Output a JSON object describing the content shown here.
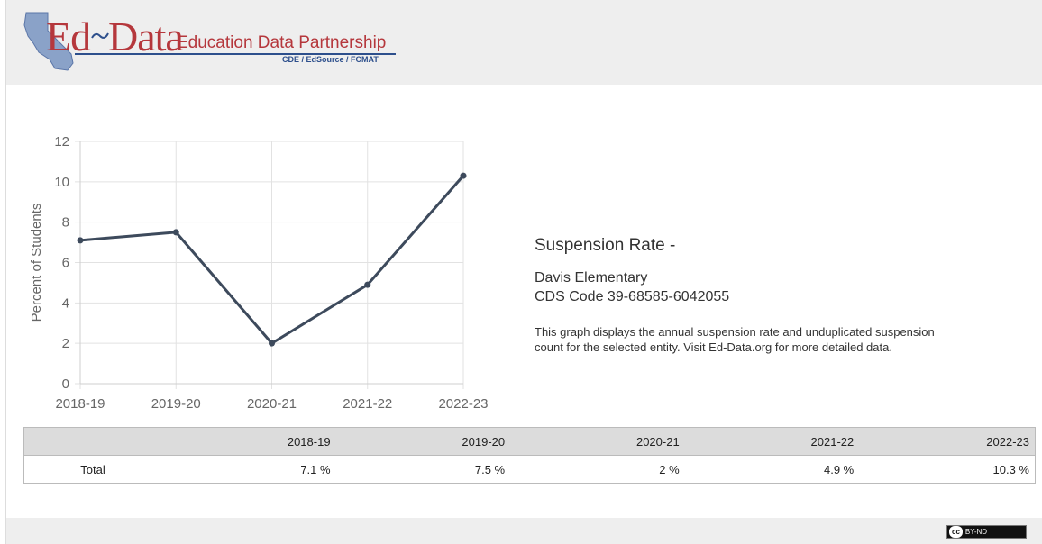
{
  "header": {
    "logo_ed": "Ed",
    "logo_data": "Data",
    "logo_tagline": "Education Data Partnership",
    "logo_subtext": "CDE / EdSource / FCMAT"
  },
  "info": {
    "title": "Suspension Rate -",
    "school": "Davis Elementary",
    "cds": "CDS Code 39-68585-6042055",
    "description": "This graph displays the annual suspension rate and unduplicated suspension count for the selected entity. Visit Ed-Data.org for more detailed data."
  },
  "table": {
    "headers": [
      "",
      "2018-19",
      "2019-20",
      "2020-21",
      "2021-22",
      "2022-23"
    ],
    "rows": [
      {
        "label": "Total",
        "values": [
          "7.1 %",
          "7.5 %",
          "2 %",
          "4.9 %",
          "10.3 %"
        ]
      }
    ]
  },
  "footer": {
    "license": "BY-ND",
    "license_badge": "cc"
  },
  "colors": {
    "line": "#3d4a5c",
    "brand": "#b5373c",
    "header_bg": "#eeeeee"
  },
  "chart_data": {
    "type": "line",
    "categories": [
      "2018-19",
      "2019-20",
      "2020-21",
      "2021-22",
      "2022-23"
    ],
    "values": [
      7.1,
      7.5,
      2,
      4.9,
      10.3
    ],
    "ylabel": "Percent of Students",
    "ylim": [
      0,
      12
    ],
    "yticks": [
      0,
      2,
      4,
      6,
      8,
      10,
      12
    ],
    "grid": true
  }
}
